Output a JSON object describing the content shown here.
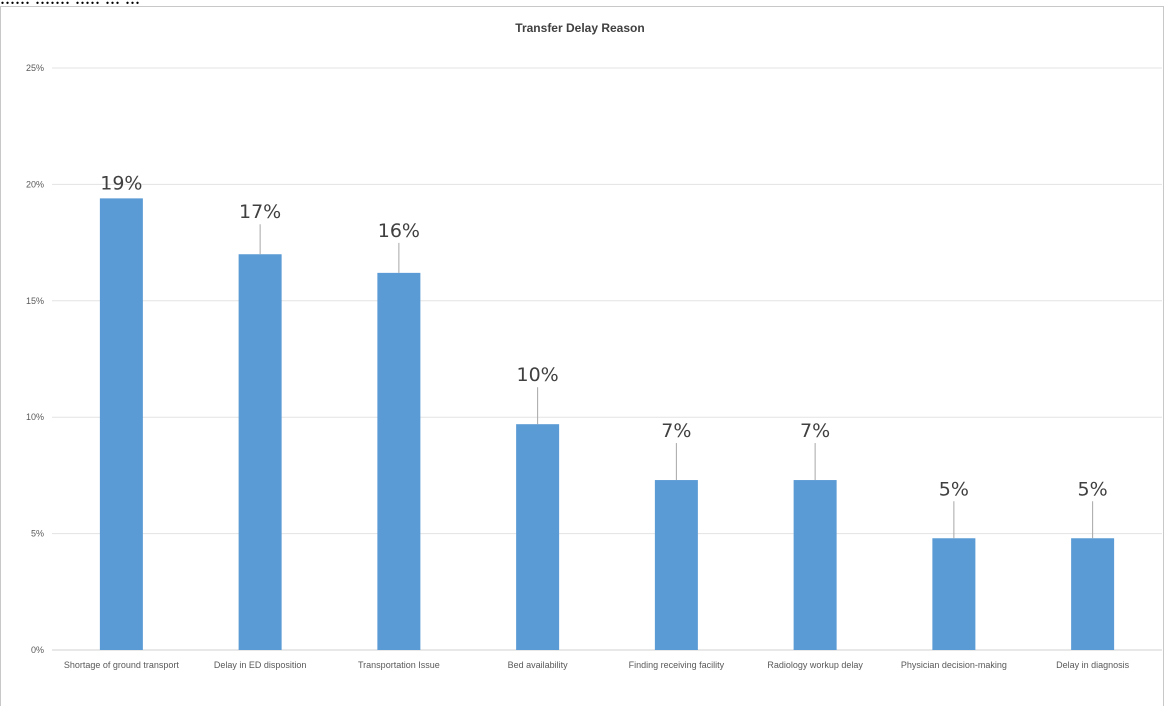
{
  "caption_fragment": "...... ....... ..... ... ...",
  "chart_data": {
    "type": "bar",
    "title": "Transfer Delay Reason",
    "xlabel": "",
    "ylabel": "",
    "ylim": [
      0,
      25
    ],
    "yticks": [
      "0%",
      "5%",
      "10%",
      "15%",
      "20%",
      "25%"
    ],
    "grid": true,
    "legend": "none",
    "bar_color": "#5b9bd5",
    "categories": [
      "Shortage of ground transport",
      "Delay in ED disposition",
      "Transportation Issue",
      "Bed availability",
      "Finding receiving facility",
      "Radiology workup delay",
      "Physician decision-making",
      "Delay in diagnosis"
    ],
    "values": [
      19.4,
      17.0,
      16.2,
      9.7,
      7.3,
      7.3,
      4.8,
      4.8
    ],
    "data_labels": [
      "19%",
      "17%",
      "16%",
      "10%",
      "7%",
      "7%",
      "5%",
      "5%"
    ]
  }
}
